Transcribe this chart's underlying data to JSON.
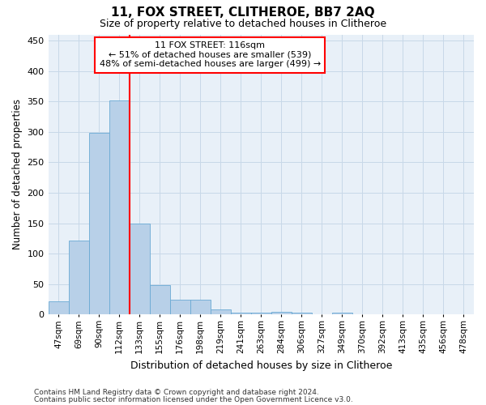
{
  "title1": "11, FOX STREET, CLITHEROE, BB7 2AQ",
  "title2": "Size of property relative to detached houses in Clitheroe",
  "xlabel": "Distribution of detached houses by size in Clitheroe",
  "ylabel": "Number of detached properties",
  "bar_labels": [
    "47sqm",
    "69sqm",
    "90sqm",
    "112sqm",
    "133sqm",
    "155sqm",
    "176sqm",
    "198sqm",
    "219sqm",
    "241sqm",
    "263sqm",
    "284sqm",
    "306sqm",
    "327sqm",
    "349sqm",
    "370sqm",
    "392sqm",
    "413sqm",
    "435sqm",
    "456sqm",
    "478sqm"
  ],
  "bar_values": [
    22,
    122,
    298,
    352,
    150,
    48,
    25,
    25,
    8,
    3,
    3,
    5,
    3,
    1,
    3,
    1,
    1,
    1,
    1,
    1,
    1
  ],
  "bar_color": "#b8d0e8",
  "bar_edge_color": "#6aaad4",
  "grid_color": "#c8d8e8",
  "background_color": "#e8f0f8",
  "annotation_box_text": "11 FOX STREET: 116sqm\n← 51% of detached houses are smaller (539)\n48% of semi-detached houses are larger (499) →",
  "annotation_box_color": "white",
  "annotation_box_edgecolor": "red",
  "annotation_line_color": "red",
  "red_line_x": 3.5,
  "ylim": [
    0,
    460
  ],
  "yticks": [
    0,
    50,
    100,
    150,
    200,
    250,
    300,
    350,
    400,
    450
  ],
  "footnote1": "Contains HM Land Registry data © Crown copyright and database right 2024.",
  "footnote2": "Contains public sector information licensed under the Open Government Licence v3.0."
}
